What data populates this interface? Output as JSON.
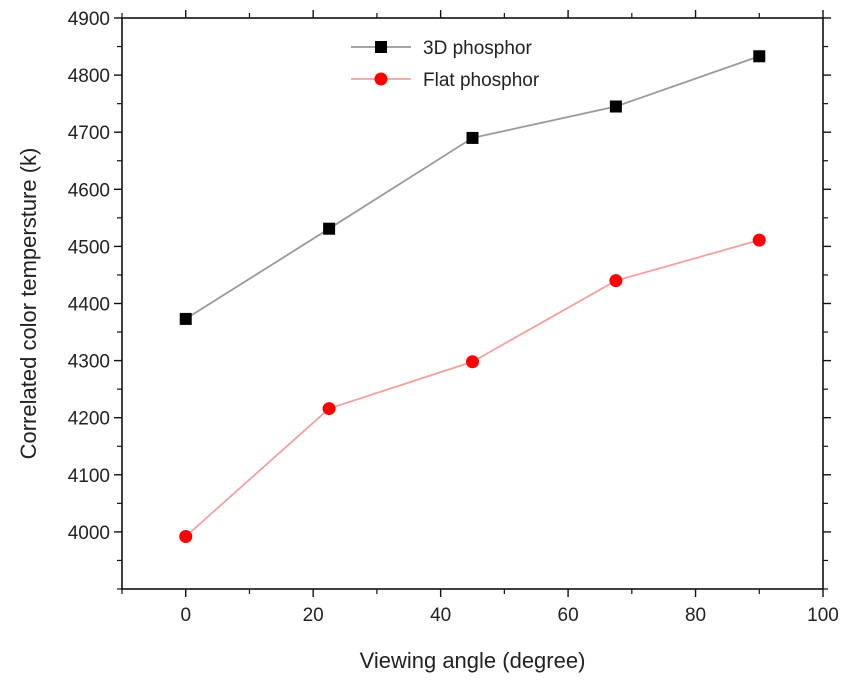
{
  "chart_data": {
    "type": "line",
    "xlabel": "Viewing angle (degree)",
    "ylabel": "Correlated color tempersture (k)",
    "xlim": [
      -10,
      100
    ],
    "ylim": [
      3900,
      4900
    ],
    "xticks": [
      0,
      20,
      40,
      60,
      80,
      100
    ],
    "yticks": [
      4000,
      4100,
      4200,
      4300,
      4400,
      4500,
      4600,
      4700,
      4800,
      4900
    ],
    "x_minor_step": 10,
    "y_minor_step": 50,
    "grid": false,
    "legend_position": "top-center",
    "series": [
      {
        "name": "3D phosphor",
        "marker": "square",
        "marker_color": "#000000",
        "line_color": "#9a9a9a",
        "x": [
          0,
          22.5,
          45,
          67.5,
          90
        ],
        "y": [
          4373,
          4531,
          4690,
          4745,
          4833
        ]
      },
      {
        "name": "Flat phosphor",
        "marker": "circle",
        "marker_color": "#ff0000",
        "line_color": "#f4a0a0",
        "x": [
          0,
          22.5,
          45,
          67.5,
          90
        ],
        "y": [
          3992,
          4216,
          4298,
          4440,
          4511
        ]
      }
    ]
  }
}
